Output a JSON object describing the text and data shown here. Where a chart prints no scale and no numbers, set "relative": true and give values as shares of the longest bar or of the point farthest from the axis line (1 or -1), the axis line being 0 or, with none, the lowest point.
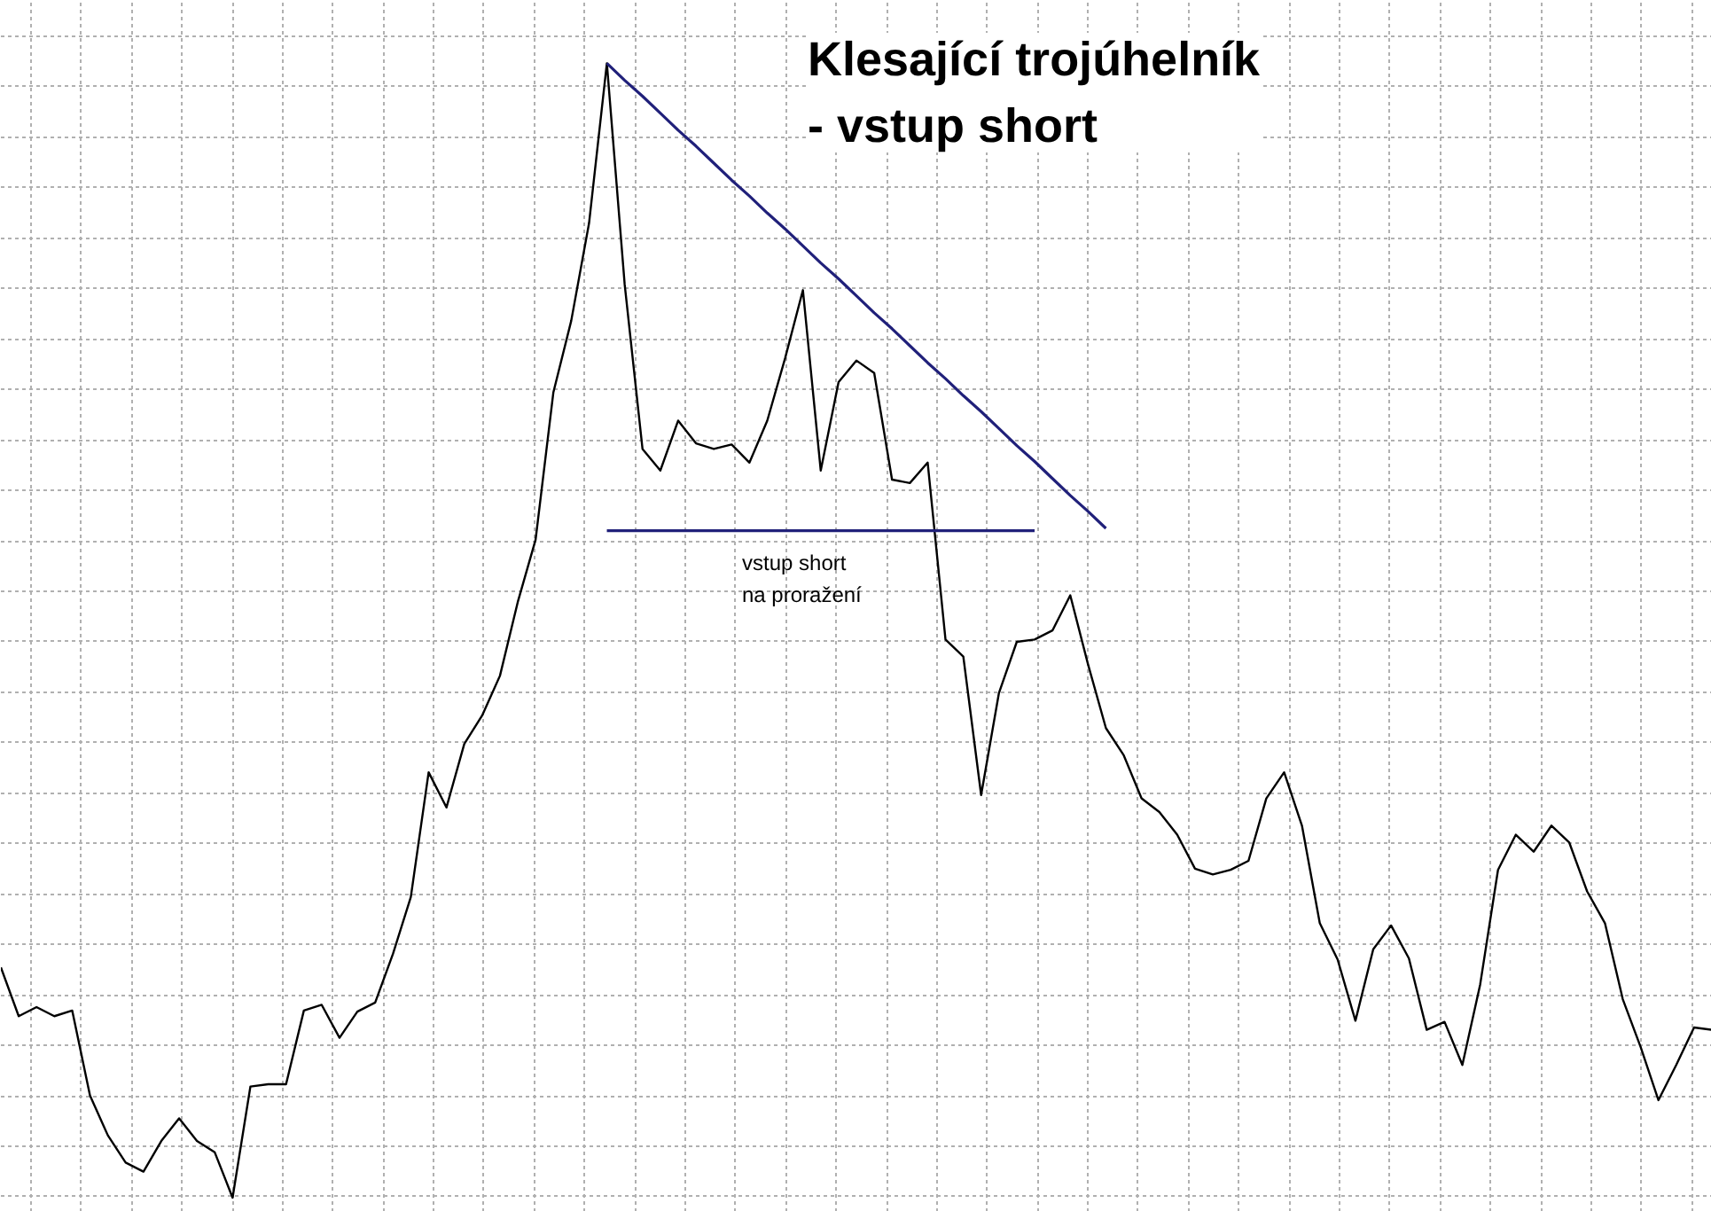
{
  "chart_data": {
    "type": "line",
    "title": "Klesající trojúhelník\n- vstup short",
    "relative": true,
    "grid": true,
    "tick_labels": false,
    "marker": "none",
    "line_style": "solid",
    "annotations": [
      "vstup short\nna proražení"
    ],
    "categories": [
      null,
      null,
      null,
      null,
      null,
      null,
      null,
      null,
      null,
      null,
      null,
      null,
      null,
      null,
      null,
      null,
      null,
      null,
      null,
      null,
      null,
      null,
      null,
      null,
      null,
      null,
      null,
      null,
      null,
      null,
      null,
      null,
      null,
      null,
      null,
      null,
      null,
      null,
      null,
      null,
      null,
      null,
      null,
      null,
      null,
      null,
      null,
      null,
      null,
      null,
      null,
      null,
      null,
      null,
      null,
      null,
      null,
      null,
      null,
      null,
      null,
      null,
      null,
      null,
      null,
      null,
      null,
      null,
      null,
      null,
      null,
      null,
      null,
      null,
      null,
      null,
      null,
      null,
      null,
      null,
      null,
      null,
      null,
      null,
      null,
      null,
      null,
      null,
      null,
      null,
      null,
      null,
      null,
      null,
      null,
      null,
      null
    ],
    "series": [
      {
        "color": "#000000",
        "values": [
          0.203,
          0.16,
          0.168,
          0.16,
          0.165,
          0.09,
          0.055,
          0.031,
          0.023,
          0.05,
          0.07,
          0.05,
          0.04,
          0.0,
          0.098,
          0.1,
          0.1,
          0.165,
          0.17,
          0.141,
          0.164,
          0.172,
          0.215,
          0.265,
          0.375,
          0.344,
          0.4,
          0.425,
          0.46,
          0.525,
          0.58,
          0.71,
          0.773,
          0.859,
          1.0,
          0.805,
          0.66,
          0.641,
          0.685,
          0.665,
          0.66,
          0.664,
          0.648,
          0.685,
          0.74,
          0.8,
          0.641,
          0.719,
          0.738,
          0.727,
          0.633,
          0.63,
          0.648,
          0.492,
          0.477,
          0.355,
          0.445,
          0.49,
          0.492,
          0.5,
          0.531,
          0.47,
          0.414,
          0.39,
          0.352,
          0.34,
          0.32,
          0.29,
          0.285,
          0.289,
          0.297,
          0.352,
          0.375,
          0.328,
          0.242,
          0.21,
          0.156,
          0.219,
          0.24,
          0.211,
          0.148,
          0.155,
          0.117,
          0.188,
          0.289,
          0.32,
          0.305,
          0.328,
          0.313,
          0.27,
          0.242,
          0.175,
          0.133,
          0.086,
          0.117,
          0.15,
          0.148
        ]
      },
      {
        "color": "#20207a",
        "values": [
          null,
          null,
          null,
          null,
          null,
          null,
          null,
          null,
          null,
          null,
          null,
          null,
          null,
          null,
          null,
          null,
          null,
          null,
          null,
          null,
          null,
          null,
          null,
          null,
          null,
          null,
          null,
          null,
          null,
          null,
          null,
          null,
          null,
          null,
          1.0,
          0.985,
          0.971,
          0.956,
          0.941,
          0.927,
          0.912,
          0.897,
          0.883,
          0.868,
          0.854,
          0.839,
          0.824,
          0.81,
          0.795,
          0.78,
          0.766,
          0.751,
          0.736,
          0.722,
          0.707,
          0.693,
          0.678,
          0.663,
          0.649,
          0.634,
          0.619,
          0.605,
          0.59,
          null,
          null,
          null,
          null,
          null,
          null,
          null,
          null,
          null,
          null,
          null,
          null,
          null,
          null,
          null,
          null,
          null,
          null,
          null,
          null,
          null,
          null,
          null,
          null,
          null,
          null,
          null,
          null,
          null,
          null,
          null,
          null,
          null,
          null
        ]
      },
      {
        "color": "#20207a",
        "values": [
          null,
          null,
          null,
          null,
          null,
          null,
          null,
          null,
          null,
          null,
          null,
          null,
          null,
          null,
          null,
          null,
          null,
          null,
          null,
          null,
          null,
          null,
          null,
          null,
          null,
          null,
          null,
          null,
          null,
          null,
          null,
          null,
          null,
          null,
          0.588,
          0.588,
          0.588,
          0.588,
          0.588,
          0.588,
          0.588,
          0.588,
          0.588,
          0.588,
          0.588,
          0.588,
          0.588,
          0.588,
          0.588,
          0.588,
          0.588,
          0.588,
          0.588,
          0.588,
          0.588,
          0.588,
          0.588,
          0.588,
          0.588,
          null,
          null,
          null,
          null,
          null,
          null,
          null,
          null,
          null,
          null,
          null,
          null,
          null,
          null,
          null,
          null,
          null,
          null,
          null,
          null,
          null,
          null,
          null,
          null,
          null,
          null,
          null,
          null,
          null,
          null,
          null,
          null,
          null,
          null,
          null,
          null,
          null,
          null
        ]
      }
    ]
  }
}
